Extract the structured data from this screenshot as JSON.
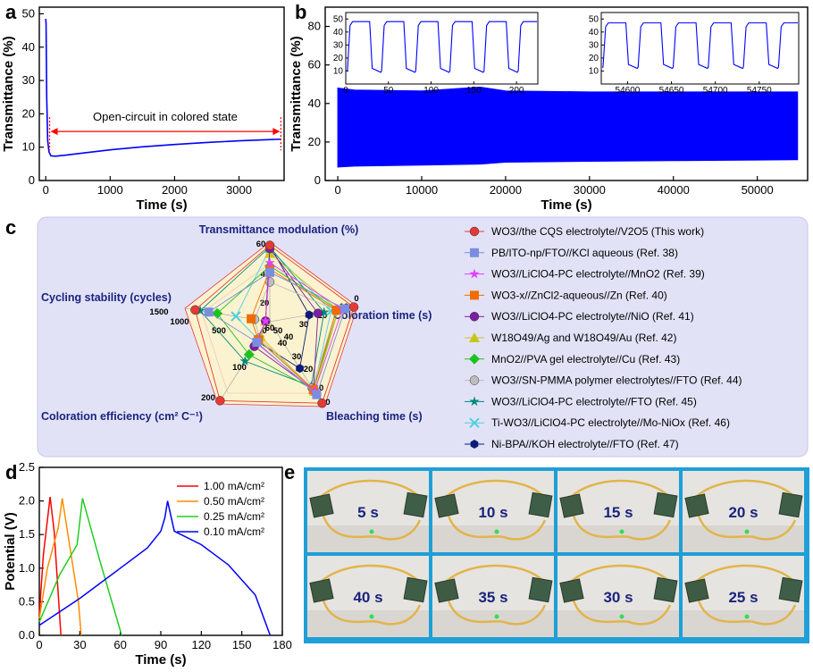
{
  "panels": {
    "a": {
      "letter": "a"
    },
    "b": {
      "letter": "b"
    },
    "c": {
      "letter": "c"
    },
    "d": {
      "letter": "d"
    },
    "e": {
      "letter": "e"
    }
  },
  "chart_data": [
    {
      "id": "a",
      "type": "line",
      "xlabel": "Time (s)",
      "ylabel": "Transmittance (%)",
      "xlim": [
        -100,
        3700
      ],
      "ylim": [
        0,
        52
      ],
      "xticks": [
        0,
        1000,
        2000,
        3000
      ],
      "yticks": [
        0,
        10,
        20,
        30,
        40,
        50
      ],
      "annotation": "Open-circuit in colored state",
      "annotation_range": [
        60,
        3650
      ],
      "series": [
        {
          "color": "#0000ff",
          "x": [
            0,
            5,
            15,
            30,
            50,
            80,
            150,
            300,
            600,
            1000,
            1500,
            2000,
            2500,
            3000,
            3400,
            3650
          ],
          "y": [
            48.5,
            47,
            25,
            12,
            8.6,
            7.4,
            7.3,
            7.6,
            8.3,
            9.2,
            10.1,
            10.8,
            11.4,
            11.9,
            12.2,
            12.4
          ]
        }
      ]
    },
    {
      "id": "b",
      "type": "area",
      "xlabel": "Time (s)",
      "ylabel": "Transmittance (%)",
      "xlim": [
        -1500,
        56000
      ],
      "ylim": [
        0,
        90
      ],
      "xticks": [
        0,
        10000,
        20000,
        30000,
        40000,
        50000
      ],
      "yticks": [
        0,
        20,
        40,
        60,
        80
      ],
      "band": {
        "color": "#0000ff",
        "x": [
          0,
          2000,
          10000,
          17000,
          20000,
          30000,
          40000,
          50000,
          54800
        ],
        "upper": [
          48,
          47,
          46.5,
          48.5,
          46.5,
          46,
          46,
          46,
          46
        ],
        "lower": [
          7,
          7.5,
          8,
          8.5,
          9.5,
          10,
          10.3,
          10.6,
          10.8
        ]
      },
      "insets": [
        {
          "xlim": [
            0,
            225
          ],
          "ylim": [
            0,
            55
          ],
          "xticks": [
            0,
            50,
            100,
            150,
            200
          ],
          "yticks": [
            10,
            20,
            30,
            40,
            50
          ],
          "period": 40,
          "high": 48,
          "low": 8,
          "start": 0
        },
        {
          "xlim": [
            54570,
            54795
          ],
          "ylim": [
            0,
            55
          ],
          "xticks": [
            54600,
            54650,
            54700,
            54750
          ],
          "yticks": [
            10,
            20,
            30,
            40,
            50
          ],
          "period": 40,
          "high": 47,
          "low": 11,
          "start": 54570
        }
      ]
    },
    {
      "id": "c",
      "type": "radar",
      "axes": [
        {
          "label": "Transmittance modulation (%)",
          "ticks": [
            "60",
            "40",
            "20"
          ]
        },
        {
          "label": "Coloration time (s)",
          "ticks": [
            "0",
            "10",
            "20",
            "30",
            "40"
          ]
        },
        {
          "label": "Bleaching time (s)",
          "ticks": [
            "0",
            "10",
            "20",
            "30",
            "40",
            "50",
            "60"
          ]
        },
        {
          "label": "Coloration efficiency (cm² C⁻¹)",
          "ticks": [
            "200",
            "100"
          ]
        },
        {
          "label": "Cycling stability (cycles)",
          "ticks": [
            "1500",
            "1000",
            "500",
            "0"
          ]
        }
      ],
      "series": [
        {
          "label": "WO3//the CQS electrolyte//V2O5 (This work)",
          "color": "#e53935",
          "marker": "circle",
          "values": [
            0.96,
            0.96,
            0.96,
            0.96,
            0.88
          ]
        },
        {
          "label": "PB/ITO-np/FTO//KCl aqueous (Ref. 38)",
          "color": "#7b8de0",
          "marker": "square",
          "values": [
            0.62,
            0.86,
            0.86,
            0.25,
            0.72
          ]
        },
        {
          "label": "WO3//LiClO4-PC electrolyte//MnO2 (Ref. 39)",
          "color": "#e040fb",
          "marker": "star",
          "values": [
            0.74,
            0.83,
            0.82,
            0.26,
            0.05
          ]
        },
        {
          "label": "WO3-x//ZnCl2-aqueous//Zn (Ref. 40)",
          "color": "#ef6c00",
          "marker": "square",
          "values": [
            0.66,
            0.76,
            0.8,
            0.22,
            0.22
          ]
        },
        {
          "label": "WO3//LiClO4-PC electrolyte//NiO (Ref. 41)",
          "color": "#7b1fa2",
          "marker": "circle",
          "values": [
            0.92,
            0.55,
            0.8,
            0.3,
            0.05
          ]
        },
        {
          "label": "W18O49/Ag and W18O49/Au (Ref. 42)",
          "color": "#c6c614",
          "marker": "triangle",
          "values": [
            0.86,
            0.78,
            0.82,
            0.18,
            0.05
          ]
        },
        {
          "label": "MnO2//PVA gel electrolyte//Cu (Ref. 43)",
          "color": "#1ec21e",
          "marker": "diamond",
          "values": [
            0.7,
            0.78,
            0.8,
            0.4,
            0.62
          ]
        },
        {
          "label": "WO3//SN-PMMA polymer electrolytes//FTO (Ref. 44)",
          "color": "#bdbdbd",
          "marker": "circle",
          "values": [
            0.5,
            0.76,
            0.78,
            0.2,
            0.18
          ]
        },
        {
          "label": "WO3//LiClO4-PC electrolyte//FTO (Ref. 45)",
          "color": "#00897b",
          "marker": "star",
          "values": [
            0.94,
            0.62,
            0.76,
            0.48,
            0.82
          ]
        },
        {
          "label": "Ti-WO3//LiClO4-PC electrolyte//Mo-NiOx (Ref. 46)",
          "color": "#4dd0e1",
          "marker": "x",
          "values": [
            0.92,
            0.7,
            0.8,
            0.22,
            0.4
          ]
        },
        {
          "label": "Ni-BPA//KOH electrolyte//FTO (Ref. 47)",
          "color": "#0d1a7a",
          "marker": "hexagon",
          "values": [
            0.96,
            0.45,
            0.55,
            0.24,
            0.05
          ]
        }
      ]
    },
    {
      "id": "d",
      "type": "line",
      "xlabel": "Time (s)",
      "ylabel": "Potential (V)",
      "xlim": [
        0,
        180
      ],
      "ylim": [
        0,
        2.5
      ],
      "xticks": [
        0,
        30,
        60,
        90,
        120,
        150,
        180
      ],
      "yticks": [
        0.0,
        0.5,
        1.0,
        1.5,
        2.0,
        2.5
      ],
      "series": [
        {
          "name": "1.00 mA/cm²",
          "color": "#ff0000",
          "x": [
            0,
            3,
            8,
            11,
            16
          ],
          "y": [
            0.3,
            1.2,
            2.06,
            1.55,
            0.0
          ]
        },
        {
          "name": "0.50 mA/cm²",
          "color": "#ff8c00",
          "x": [
            0,
            6,
            14,
            17,
            29,
            31
          ],
          "y": [
            0.25,
            1.0,
            1.6,
            2.04,
            0.5,
            0.0
          ]
        },
        {
          "name": "0.25 mA/cm²",
          "color": "#22cc22",
          "x": [
            0,
            15,
            28,
            32,
            45,
            61
          ],
          "y": [
            0.2,
            0.9,
            1.35,
            2.04,
            1.1,
            0.0
          ]
        },
        {
          "name": "0.10 mA/cm²",
          "color": "#0000ff",
          "x": [
            0,
            30,
            60,
            80,
            90,
            93,
            95,
            100,
            120,
            140,
            160,
            171
          ],
          "y": [
            0.15,
            0.55,
            1.0,
            1.3,
            1.55,
            1.75,
            2.0,
            1.55,
            1.35,
            1.05,
            0.6,
            0.0
          ]
        }
      ]
    }
  ],
  "photos": {
    "labels": [
      "5 s",
      "10 s",
      "15 s",
      "20 s",
      "40 s",
      "35 s",
      "30 s",
      "25 s"
    ]
  }
}
